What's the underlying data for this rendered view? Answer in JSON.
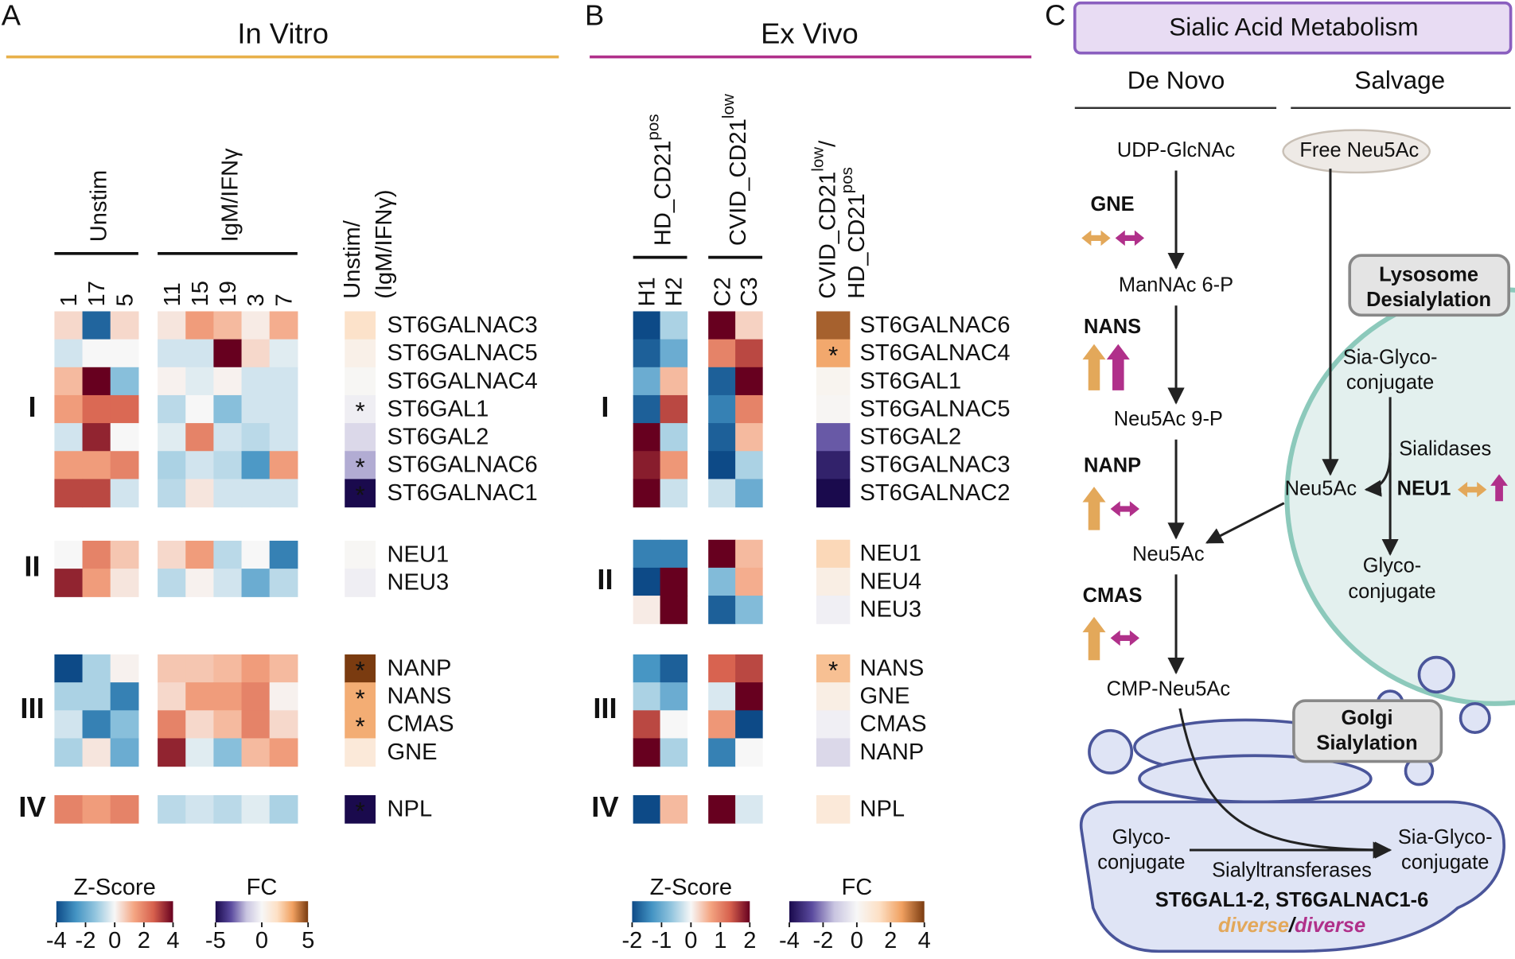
{
  "panel_a": {
    "letter": "A",
    "title": "In Vitro",
    "accent": "#e8b04a",
    "groups": [
      {
        "label": "Unstim",
        "columns": [
          "1",
          "17",
          "5"
        ]
      },
      {
        "label": "IgM/IFNγ",
        "columns": [
          "11",
          "15",
          "19",
          "3",
          "7"
        ]
      }
    ],
    "fc_header": [
      "Unstim/",
      "(IgM/IFNγ)"
    ],
    "blocks": [
      {
        "label": "I",
        "rows": [
          {
            "gene": "ST6GALNAC3",
            "z": [
              0.5,
              -3.5,
              0.5,
              0.3,
              1.5,
              1,
              0.2,
              1.2
            ],
            "fc": 1.5
          },
          {
            "gene": "ST6GALNAC5",
            "z": [
              -0.5,
              0,
              0,
              -0.5,
              -0.5,
              4,
              0.5,
              -0.3
            ],
            "fc": 0.5
          },
          {
            "gene": "ST6GALNAC4",
            "z": [
              1,
              4,
              -1.5,
              0.1,
              -0.3,
              0.1,
              -0.5,
              -0.5
            ],
            "fc": 0.1
          },
          {
            "gene": "ST6GAL1",
            "z": [
              1.5,
              2.5,
              2.5,
              -0.8,
              0,
              -1.5,
              -0.5,
              -0.5
            ],
            "fc": -0.3,
            "star": "*"
          },
          {
            "gene": "ST6GAL2",
            "z": [
              -0.5,
              3.5,
              0,
              -0.3,
              2,
              -0.5,
              -0.8,
              -0.5
            ],
            "fc": -1
          },
          {
            "gene": "ST6GALNAC6",
            "z": [
              1.5,
              1.5,
              2,
              -1,
              -0.5,
              -0.8,
              -2.5,
              1.5
            ],
            "fc": -2,
            "star": "*"
          },
          {
            "gene": "ST6GALNAC1",
            "z": [
              3,
              3,
              -0.5,
              -0.8,
              0.3,
              -0.5,
              -0.5,
              -0.5
            ],
            "fc": -5,
            "star": "*"
          }
        ]
      },
      {
        "label": "II",
        "rows": [
          {
            "gene": "NEU1",
            "z": [
              0,
              2,
              0.8,
              0.5,
              1.5,
              -0.8,
              0,
              -3
            ],
            "fc": 0.1
          },
          {
            "gene": "NEU3",
            "z": [
              3.5,
              1.5,
              0.3,
              -0.8,
              0.1,
              -0.5,
              -2,
              -0.8
            ],
            "fc": -0.3
          }
        ]
      },
      {
        "label": "III",
        "rows": [
          {
            "gene": "NANP",
            "z": [
              -4,
              -1,
              0.1,
              0.8,
              0.8,
              1,
              1.5,
              1
            ],
            "fc": 5,
            "star": "*"
          },
          {
            "gene": "NANS",
            "z": [
              -1,
              -1,
              -3,
              0.5,
              1.5,
              1.5,
              2,
              0.1
            ],
            "fc": 3,
            "star": "*"
          },
          {
            "gene": "CMAS",
            "z": [
              -0.5,
              -3,
              -1.5,
              2,
              0.5,
              1,
              2,
              0.5
            ],
            "fc": 3,
            "star": "*"
          },
          {
            "gene": "GNE",
            "z": [
              -1,
              0.3,
              -2,
              3.5,
              -0.3,
              -1.5,
              1,
              1.5
            ],
            "fc": 1
          }
        ]
      },
      {
        "label": "IV",
        "rows": [
          {
            "gene": "NPL",
            "z": [
              2,
              1.5,
              2,
              -0.8,
              -0.5,
              -0.8,
              -0.3,
              -1
            ],
            "fc": -5,
            "star": "*"
          }
        ]
      }
    ],
    "zscore_legend": {
      "title": "Z-Score",
      "lim": [
        -4,
        4
      ],
      "ticks": [
        -4,
        -2,
        0,
        2,
        4
      ],
      "colors": [
        "#0d4a87",
        "#4393c3",
        "#92c5de",
        "#f7f7f7",
        "#f4a582",
        "#d6604d",
        "#67001f"
      ]
    },
    "fc_legend": {
      "title": "FC",
      "lim": [
        -5,
        5
      ],
      "ticks": [
        -5,
        0,
        5
      ],
      "colors": [
        "#1a0a4d",
        "#5a4a9e",
        "#c8c4e0",
        "#f7f7f7",
        "#fde0c5",
        "#f0a060",
        "#7a3b10"
      ]
    }
  },
  "panel_b": {
    "letter": "B",
    "title": "Ex Vivo",
    "accent": "#b0308a",
    "groups": [
      {
        "label": {
          "base": "HD_CD21",
          "sup": "pos"
        },
        "columns": [
          "H1",
          "H2"
        ]
      },
      {
        "label": {
          "base": "CVID_CD21",
          "sup": "low"
        },
        "columns": [
          "C2",
          "C3"
        ]
      }
    ],
    "fc_header": [
      {
        "base": "CVID_CD21",
        "sup": "low",
        "tail": "/"
      },
      {
        "base": "HD_CD21",
        "sup": "pos"
      }
    ],
    "blocks": [
      {
        "label": "I",
        "rows": [
          {
            "gene": "ST6GALNAC6",
            "z": [
              -2,
              -0.5,
              2,
              0.3
            ],
            "fc": 3.5
          },
          {
            "gene": "ST6GALNAC4",
            "z": [
              -1.8,
              -1,
              1,
              1.5
            ],
            "fc": 2.5,
            "star": "*"
          },
          {
            "gene": "ST6GAL1",
            "z": [
              -1,
              0.5,
              -1.8,
              2
            ],
            "fc": 0.2
          },
          {
            "gene": "ST6GALNAC5",
            "z": [
              -1.8,
              1.5,
              -1.5,
              1
            ],
            "fc": 0.1
          },
          {
            "gene": "ST6GAL2",
            "z": [
              2,
              -0.5,
              -1.8,
              0.5
            ],
            "fc": -2.5
          },
          {
            "gene": "ST6GALNAC3",
            "z": [
              1.8,
              0.8,
              -2,
              -0.5
            ],
            "fc": -3.5
          },
          {
            "gene": "ST6GALNAC2",
            "z": [
              2.5,
              -0.3,
              -0.3,
              -1
            ],
            "fc": -4
          }
        ]
      },
      {
        "label": "II",
        "rows": [
          {
            "gene": "NEU1",
            "z": [
              -1.5,
              -1.5,
              2,
              0.5
            ],
            "fc": 1.5
          },
          {
            "gene": "NEU4",
            "z": [
              -2,
              2,
              -0.8,
              0.6
            ],
            "fc": 0.5
          },
          {
            "gene": "NEU3",
            "z": [
              0.1,
              2.5,
              -1.8,
              -0.8
            ],
            "fc": -0.2
          }
        ]
      },
      {
        "label": "III",
        "rows": [
          {
            "gene": "NANS",
            "z": [
              -1.3,
              -1.8,
              1.3,
              1.5
            ],
            "fc": 2,
            "star": "*"
          },
          {
            "gene": "GNE",
            "z": [
              -0.5,
              -1,
              -0.2,
              2.5
            ],
            "fc": 0.5
          },
          {
            "gene": "CMAS",
            "z": [
              1.5,
              0,
              0.8,
              -2.5
            ],
            "fc": -0.2
          },
          {
            "gene": "NANP",
            "z": [
              2.5,
              -0.5,
              -1.5,
              0
            ],
            "fc": -0.8
          }
        ]
      },
      {
        "label": "IV",
        "rows": [
          {
            "gene": "NPL",
            "z": [
              -2,
              0.5,
              2,
              -0.2
            ],
            "fc": 0.8
          }
        ]
      }
    ],
    "zscore_legend": {
      "title": "Z-Score",
      "lim": [
        -2,
        2
      ],
      "ticks": [
        -2,
        -1,
        0,
        1,
        2
      ],
      "colors": [
        "#0d4a87",
        "#4393c3",
        "#92c5de",
        "#f7f7f7",
        "#f4a582",
        "#d6604d",
        "#67001f"
      ]
    },
    "fc_legend": {
      "title": "FC",
      "lim": [
        -4,
        4
      ],
      "ticks": [
        -4,
        -2,
        0,
        2,
        4
      ],
      "colors": [
        "#1a0a4d",
        "#5a4a9e",
        "#c8c4e0",
        "#f7f7f7",
        "#fde0c5",
        "#f0a060",
        "#7a3b10"
      ]
    }
  },
  "panel_c": {
    "letter": "C",
    "title": "Sialic Acid Metabolism",
    "de_novo": "De Novo",
    "salvage": "Salvage",
    "metabolites": {
      "udp": "UDP-GlcNAc",
      "free": "Free Neu5Ac",
      "mannac": "ManNAc 6-P",
      "neu9p": "Neu5Ac 9-P",
      "neu": "Neu5Ac",
      "cmp": "CMP-Neu5Ac"
    },
    "enzymes": [
      "GNE",
      "NANS",
      "NANP",
      "CMAS"
    ],
    "lysosome": {
      "title": [
        "Lysosome",
        "Desialylation"
      ],
      "substrate": [
        "Sia-Glyco-",
        "conjugate"
      ],
      "enzyme_class": "Sialidases",
      "product": "Neu5Ac",
      "enzyme": "NEU1",
      "remnant": [
        "Glyco-",
        "conjugate"
      ]
    },
    "golgi": {
      "title": [
        "Golgi",
        "Sialylation"
      ],
      "substrate": [
        "Glyco-",
        "conjugate"
      ],
      "enzyme_class": "Sialyltransferases",
      "product": [
        "Sia-Glyco-",
        "conjugate"
      ],
      "enzymes": "ST6GAL1-2, ST6GALNAC1-6",
      "diversity": [
        "diverse",
        "/",
        "diverse"
      ]
    }
  }
}
